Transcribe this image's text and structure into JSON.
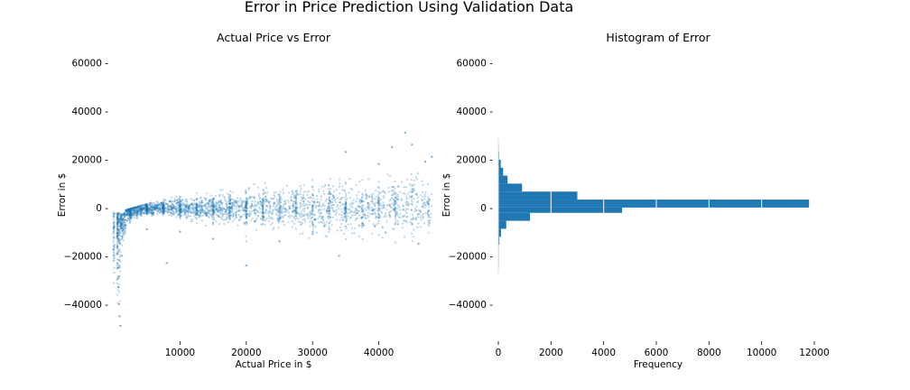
{
  "figure": {
    "suptitle": "Error in Price Prediction Using Validation Data"
  },
  "chart_data": [
    {
      "type": "scatter",
      "title": "Actual Price vs Error",
      "xlabel": "Actual Price in $",
      "ylabel": "Error in $",
      "xlim": [
        0,
        48500
      ],
      "ylim": [
        -55000,
        65000
      ],
      "xticks": [
        10000,
        20000,
        30000,
        40000
      ],
      "yticks": [
        -40000,
        -20000,
        0,
        20000,
        40000,
        60000
      ],
      "grid": false,
      "marker_color": "#1f77b4",
      "marker_alpha": 0.3,
      "n_points_approx": 12000,
      "spread_envelope": {
        "x": [
          500,
          2000,
          5000,
          10000,
          15000,
          20000,
          25000,
          30000,
          35000,
          40000,
          45000,
          48000
        ],
        "error_low": [
          -48000,
          -15000,
          -6000,
          -9000,
          -12000,
          -14000,
          -16000,
          -18000,
          -17000,
          -15000,
          -14000,
          -10000
        ],
        "error_high": [
          -2000,
          -1000,
          1500,
          5000,
          7000,
          9000,
          12000,
          15000,
          19000,
          17000,
          30000,
          22000
        ]
      },
      "points": [
        {
          "x": 500,
          "y": -12000
        },
        {
          "x": 600,
          "y": -25000
        },
        {
          "x": 700,
          "y": -33000
        },
        {
          "x": 800,
          "y": -40000
        },
        {
          "x": 900,
          "y": -45000
        },
        {
          "x": 1000,
          "y": -49000
        },
        {
          "x": 1200,
          "y": -20000
        },
        {
          "x": 1500,
          "y": -8000
        },
        {
          "x": 2000,
          "y": -3000
        },
        {
          "x": 3000,
          "y": -2500
        },
        {
          "x": 5000,
          "y": -9000
        },
        {
          "x": 8000,
          "y": -23000
        },
        {
          "x": 10000,
          "y": -10000
        },
        {
          "x": 15000,
          "y": -13000
        },
        {
          "x": 20000,
          "y": -24000
        },
        {
          "x": 25000,
          "y": -14000
        },
        {
          "x": 30000,
          "y": -11000
        },
        {
          "x": 34000,
          "y": -20000
        },
        {
          "x": 35000,
          "y": 23000
        },
        {
          "x": 40000,
          "y": 18000
        },
        {
          "x": 42000,
          "y": 25000
        },
        {
          "x": 44000,
          "y": 31000
        },
        {
          "x": 45000,
          "y": 26000
        },
        {
          "x": 46000,
          "y": -15000
        },
        {
          "x": 47000,
          "y": 19000
        },
        {
          "x": 48000,
          "y": 21000
        }
      ]
    },
    {
      "type": "histogram",
      "orientation": "horizontal",
      "title": "Histogram of Error",
      "xlabel": "Frequency",
      "ylabel": "Error in $",
      "xlim": [
        0,
        12000
      ],
      "ylim": [
        -55000,
        65000
      ],
      "xticks": [
        0,
        2000,
        4000,
        6000,
        8000,
        10000,
        12000
      ],
      "yticks": [
        -40000,
        -20000,
        0,
        20000,
        40000,
        60000
      ],
      "grid": true,
      "bar_color": "#1f77b4",
      "bins": [
        {
          "lo": -25300,
          "hi": -22000,
          "count": 5
        },
        {
          "lo": -22000,
          "hi": -18700,
          "count": 10
        },
        {
          "lo": -18700,
          "hi": -15400,
          "count": 20
        },
        {
          "lo": -15400,
          "hi": -12100,
          "count": 40
        },
        {
          "lo": -12100,
          "hi": -8800,
          "count": 100
        },
        {
          "lo": -8800,
          "hi": -5500,
          "count": 300
        },
        {
          "lo": -5500,
          "hi": -2200,
          "count": 1200
        },
        {
          "lo": -2200,
          "hi": 0,
          "count": 4700
        },
        {
          "lo": 0,
          "hi": 1100,
          "count": 11800
        },
        {
          "lo": 1100,
          "hi": 3300,
          "count": 11800
        },
        {
          "lo": 3300,
          "hi": 6600,
          "count": 3000
        },
        {
          "lo": 6600,
          "hi": 9900,
          "count": 900
        },
        {
          "lo": 9900,
          "hi": 13200,
          "count": 350
        },
        {
          "lo": 13200,
          "hi": 16500,
          "count": 180
        },
        {
          "lo": 16500,
          "hi": 19800,
          "count": 90
        },
        {
          "lo": 19800,
          "hi": 23100,
          "count": 30
        },
        {
          "lo": 23100,
          "hi": 26400,
          "count": 8
        }
      ]
    }
  ]
}
